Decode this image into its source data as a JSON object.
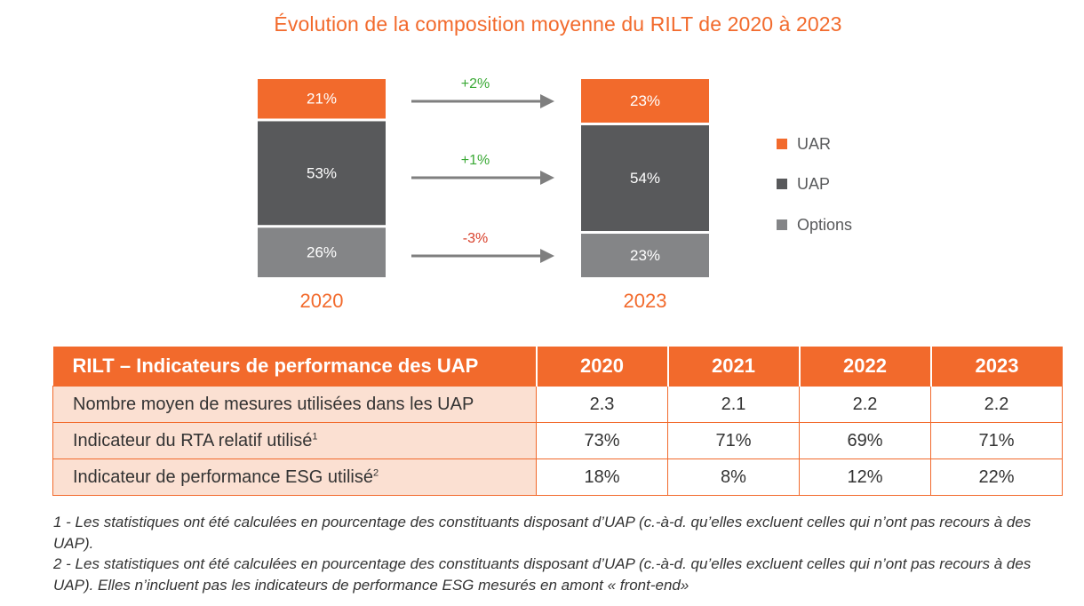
{
  "chart_data": {
    "type": "stacked-bar",
    "title": "Évolution de la composition moyenne du RILT de 2020 à 2023",
    "categories": [
      "2020",
      "2023"
    ],
    "series": [
      {
        "name": "Options",
        "values": [
          26,
          23
        ],
        "labels": [
          "26%",
          "23%"
        ]
      },
      {
        "name": "UAP",
        "values": [
          53,
          54
        ],
        "labels": [
          "53%",
          "54%"
        ]
      },
      {
        "name": "UAR",
        "values": [
          21,
          23
        ],
        "labels": [
          "21%",
          "23%"
        ]
      }
    ],
    "changes": [
      {
        "series": "UAR",
        "label": "+2%"
      },
      {
        "series": "UAP",
        "label": "+1%"
      },
      {
        "series": "Options",
        "label": "-3%"
      }
    ],
    "legend": [
      "UAR",
      "UAP",
      "Options"
    ],
    "legend_position": "right"
  },
  "colors": {
    "UAR": "#f26a2c",
    "UAP": "#58595b",
    "Options": "#848587",
    "positive": "#3aa935",
    "negative": "#d8402b",
    "arrow": "#7f7f7f"
  },
  "table": {
    "header": {
      "title": "RILT – Indicateurs de performance des UAP",
      "years": [
        "2020",
        "2021",
        "2022",
        "2023"
      ]
    },
    "rows": [
      {
        "label": "Nombre moyen de mesures utilisées dans les UAP",
        "note": "",
        "values": [
          "2.3",
          "2.1",
          "2.2",
          "2.2"
        ]
      },
      {
        "label": "Indicateur du RTA relatif utilisé",
        "note": "1",
        "values": [
          "73%",
          "71%",
          "69%",
          "71%"
        ]
      },
      {
        "label": "Indicateur de performance ESG utilisé",
        "note": "2",
        "values": [
          "18%",
          "8%",
          "12%",
          "22%"
        ]
      }
    ]
  },
  "footnotes": [
    "1 - Les statistiques ont été calculées en pourcentage des constituants disposant d’UAP (c.-à-d. qu’elles excluent celles qui n’ont pas recours à des UAP).",
    "2 - Les statistiques ont été calculées en pourcentage des constituants disposant d’UAP (c.-à-d. qu’elles excluent celles qui n’ont pas recours à des UAP). Elles n’incluent pas les indicateurs de performance ESG mesurés en amont « front-end»"
  ]
}
